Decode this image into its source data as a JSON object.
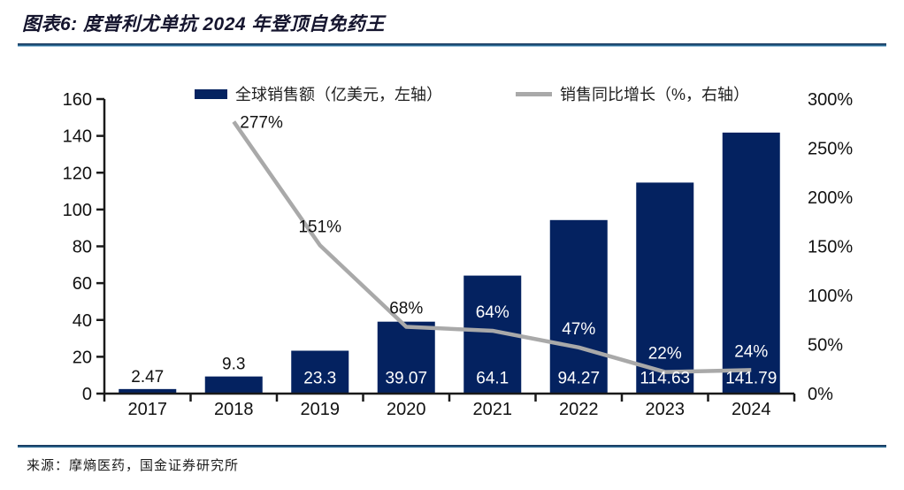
{
  "figure": {
    "title": "图表6: 度普利尤单抗 2024 年登顶自免药王",
    "source": "来源：摩熵医药，国金证券研究所"
  },
  "colors": {
    "bar_navy": "#042260",
    "line_gray": "#a9a9a9",
    "divider_blue": "#2e6b94",
    "axis_black": "#1a1a1a"
  },
  "chart_data": {
    "type": "bar",
    "subtype": "combo-bar-line",
    "categories": [
      "2017",
      "2018",
      "2019",
      "2020",
      "2021",
      "2022",
      "2023",
      "2024"
    ],
    "series": [
      {
        "name": "全球销售额（亿美元，左轴）",
        "type": "bar",
        "axis": "left",
        "color": "#042260",
        "values": [
          2.47,
          9.3,
          23.3,
          39.07,
          64.1,
          94.27,
          114.63,
          141.79
        ],
        "labels": [
          "2.47",
          "9.3",
          "23.3",
          "39.07",
          "64.1",
          "94.27",
          "114.63",
          "141.79"
        ]
      },
      {
        "name": "销售同比增长（%，右轴）",
        "type": "line",
        "axis": "right",
        "color": "#a9a9a9",
        "values": [
          null,
          277,
          151,
          68,
          64,
          47,
          22,
          24
        ],
        "labels": [
          null,
          "277%",
          "151%",
          "68%",
          "64%",
          "47%",
          "22%",
          "24%"
        ]
      }
    ],
    "left_axis": {
      "min": 0,
      "max": 160,
      "step": 20,
      "ticks": [
        "0",
        "20",
        "40",
        "60",
        "80",
        "100",
        "120",
        "140",
        "160"
      ]
    },
    "right_axis": {
      "min": 0,
      "max": 300,
      "step": 50,
      "ticks": [
        "0%",
        "50%",
        "100%",
        "150%",
        "200%",
        "250%",
        "300%"
      ]
    },
    "legend_position": "top",
    "grid": false
  }
}
